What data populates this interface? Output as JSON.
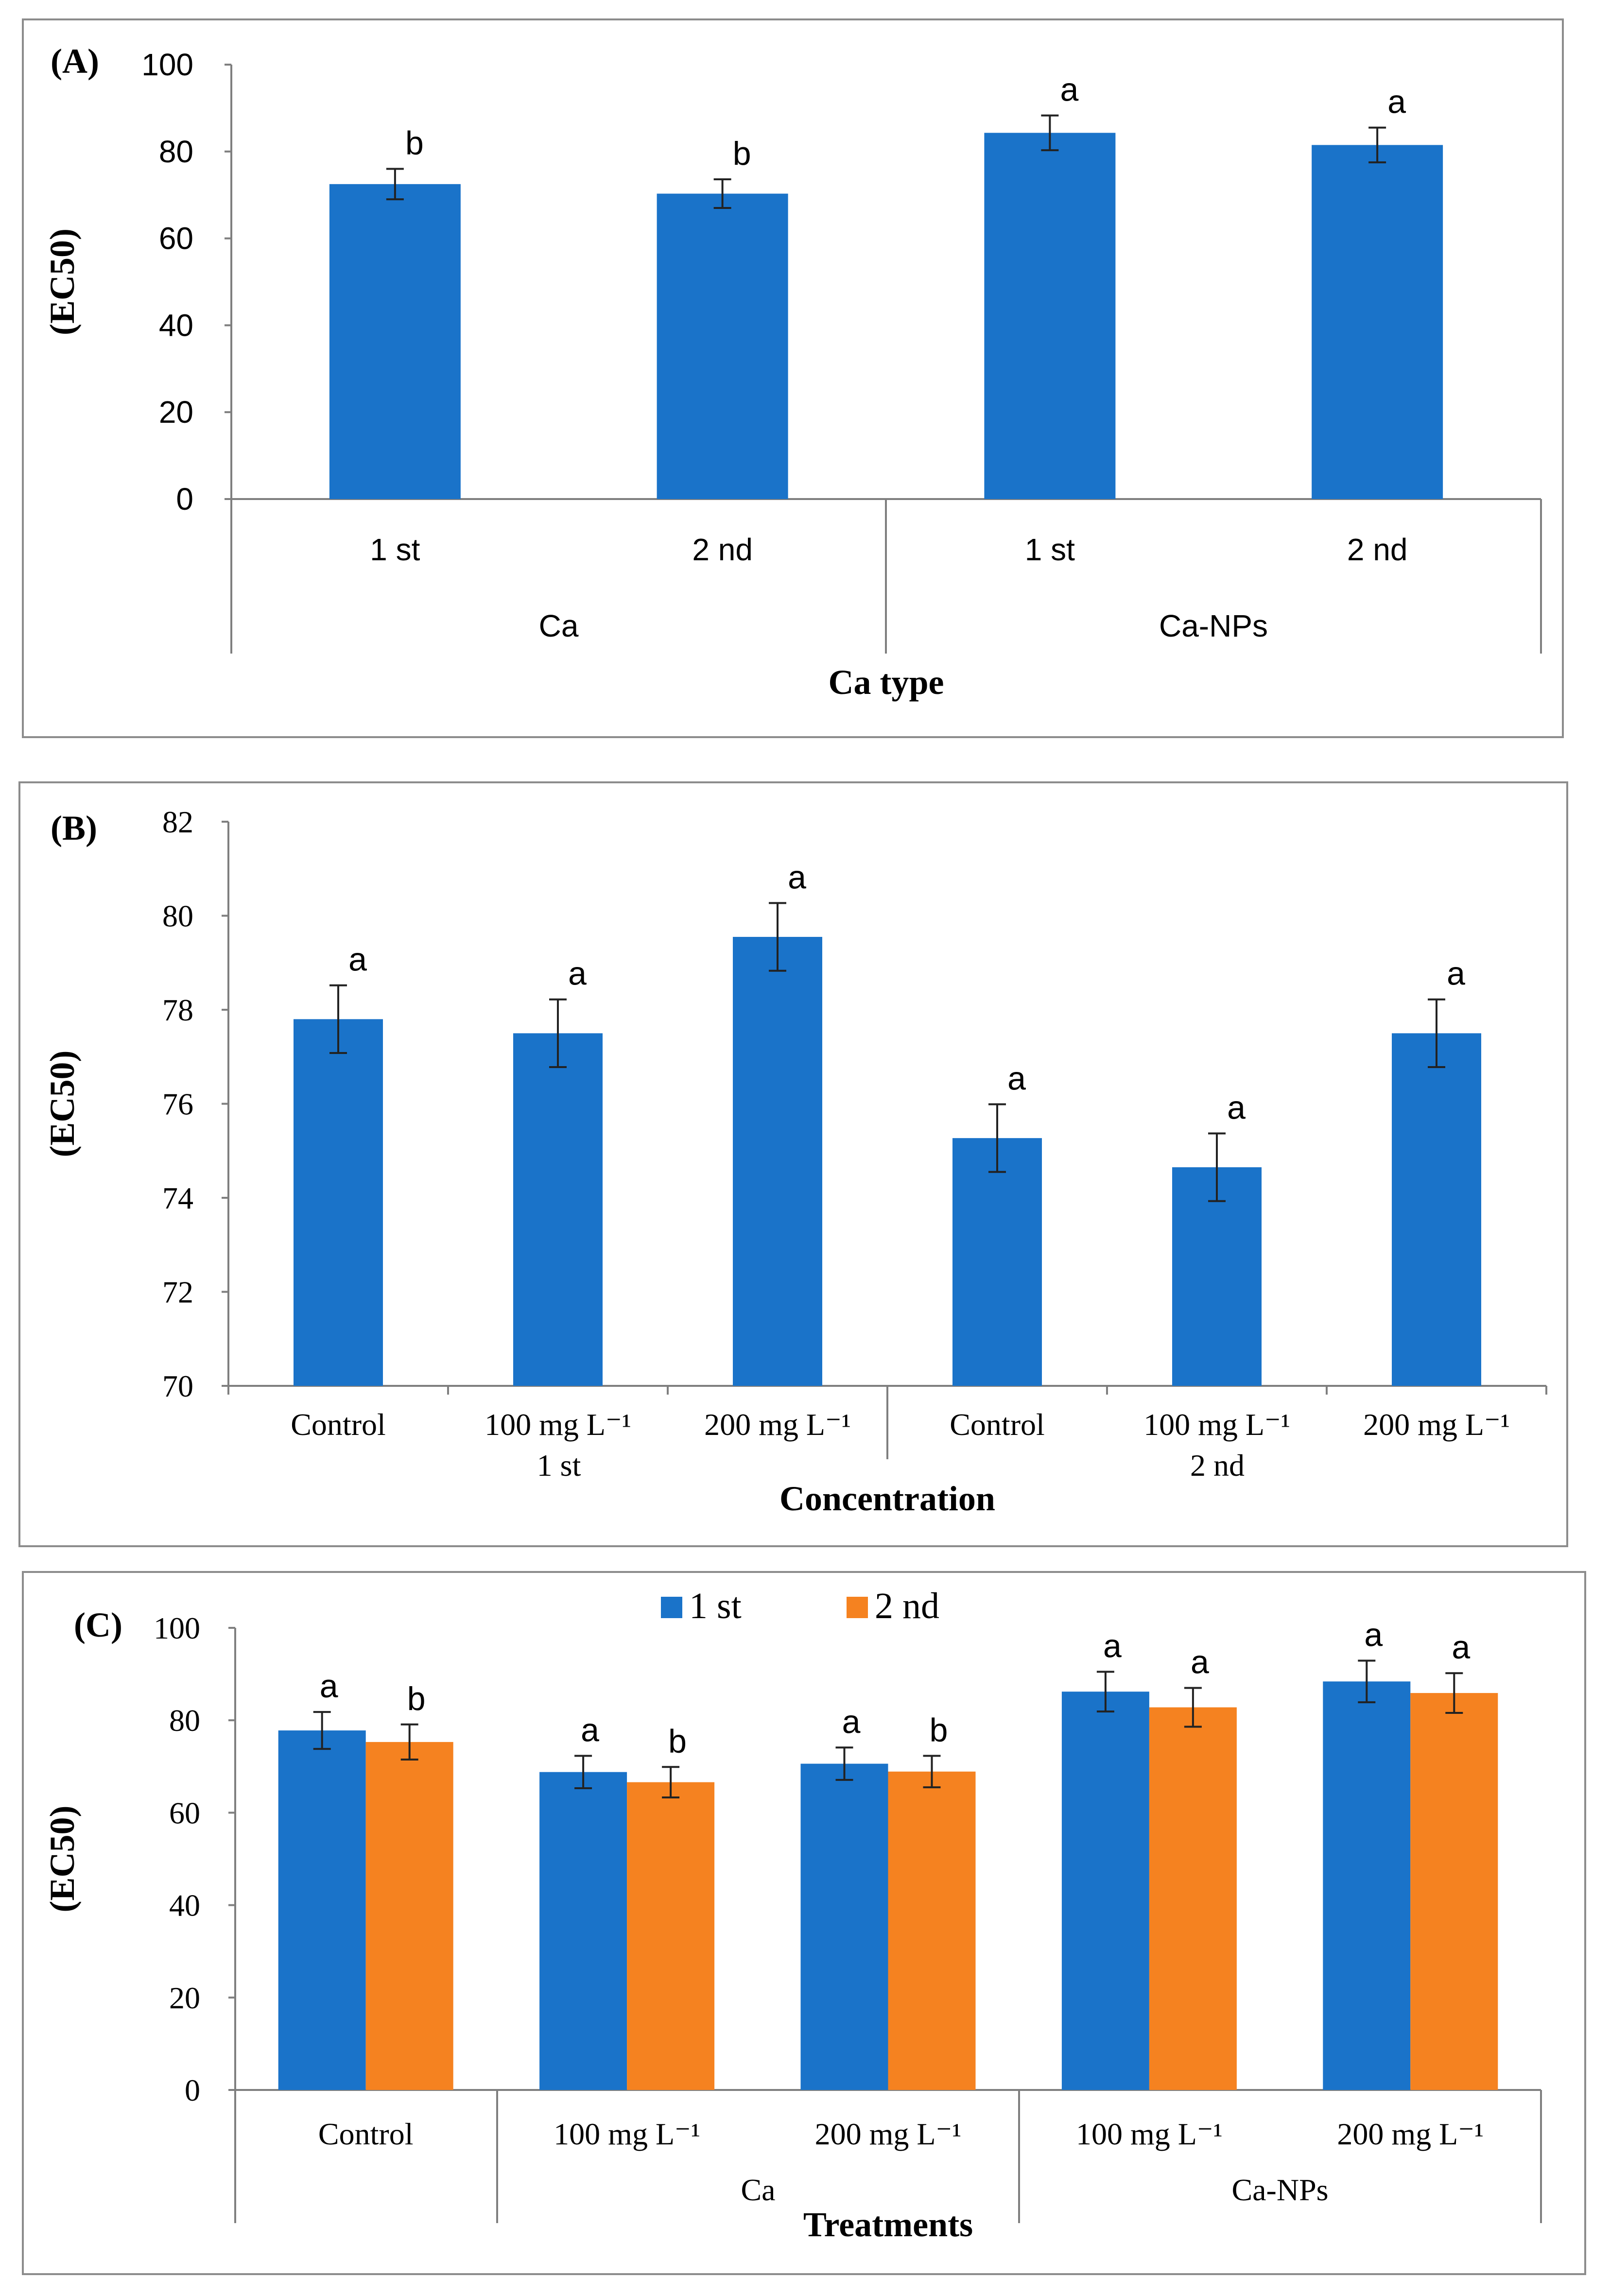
{
  "colors": {
    "series1": "#1a73c9",
    "series2": "#f58220",
    "axis": "#7f7f7f",
    "frame": "#8c8c8c",
    "text": "#000000"
  },
  "chart_data": [
    {
      "panel": "(A)",
      "type": "bar",
      "ylabel": "(EC50)",
      "xlabel": "Ca type",
      "ylim": [
        0,
        100
      ],
      "yticks": [
        "0",
        "20",
        "40",
        "60",
        "80",
        "100"
      ],
      "categories": [
        "1 st",
        "2 nd",
        "1 st",
        "2 nd"
      ],
      "groups": [
        "Ca",
        "Ca-NPs"
      ],
      "series": [
        {
          "name": "EC50",
          "values": [
            72.5,
            70.3,
            84.3,
            81.5
          ],
          "errors": [
            3.5,
            3.3,
            4.0,
            4.0
          ],
          "letters": [
            "b",
            "b",
            "a",
            "a"
          ]
        }
      ]
    },
    {
      "panel": "(B)",
      "type": "bar",
      "ylabel": "(EC50)",
      "xlabel": "Concentration",
      "ylim": [
        70,
        82
      ],
      "yticks": [
        "70",
        "72",
        "74",
        "76",
        "78",
        "80",
        "82"
      ],
      "categories": [
        "Control",
        "100    mg L⁻¹",
        "200 mg L⁻¹",
        "Control",
        "100    mg L⁻¹",
        "200 mg L⁻¹"
      ],
      "groups": [
        "1 st",
        "2 nd"
      ],
      "series": [
        {
          "name": "EC50",
          "values": [
            77.8,
            77.5,
            79.55,
            75.27,
            74.65,
            77.5
          ],
          "errors": [
            0.72,
            0.72,
            0.72,
            0.72,
            0.72,
            0.72
          ],
          "letters": [
            "a",
            "a",
            "a",
            "a",
            "a",
            "a"
          ]
        }
      ]
    },
    {
      "panel": "(C)",
      "type": "bar",
      "ylabel": "(EC50)",
      "xlabel": "Treatments",
      "ylim": [
        0,
        100
      ],
      "yticks": [
        "0",
        "20",
        "40",
        "60",
        "80",
        "100"
      ],
      "categories": [
        "Control",
        "100    mg L⁻¹",
        "200 mg L⁻¹",
        "100    mg L⁻¹",
        "200 mg L⁻¹"
      ],
      "groups": [
        "Ca",
        "Ca-NPs"
      ],
      "legend": [
        "1 st",
        "2 nd"
      ],
      "series": [
        {
          "name": "1 st",
          "values": [
            77.8,
            68.8,
            70.6,
            86.2,
            88.4
          ],
          "errors": [
            4.0,
            3.5,
            3.5,
            4.3,
            4.5
          ],
          "letters": [
            "a",
            "a",
            "a",
            "a",
            "a"
          ]
        },
        {
          "name": "2 nd",
          "values": [
            75.3,
            66.6,
            68.9,
            82.8,
            85.9
          ],
          "errors": [
            3.8,
            3.3,
            3.4,
            4.2,
            4.3
          ],
          "letters": [
            "b",
            "b",
            "b",
            "a",
            "a"
          ]
        }
      ]
    }
  ]
}
